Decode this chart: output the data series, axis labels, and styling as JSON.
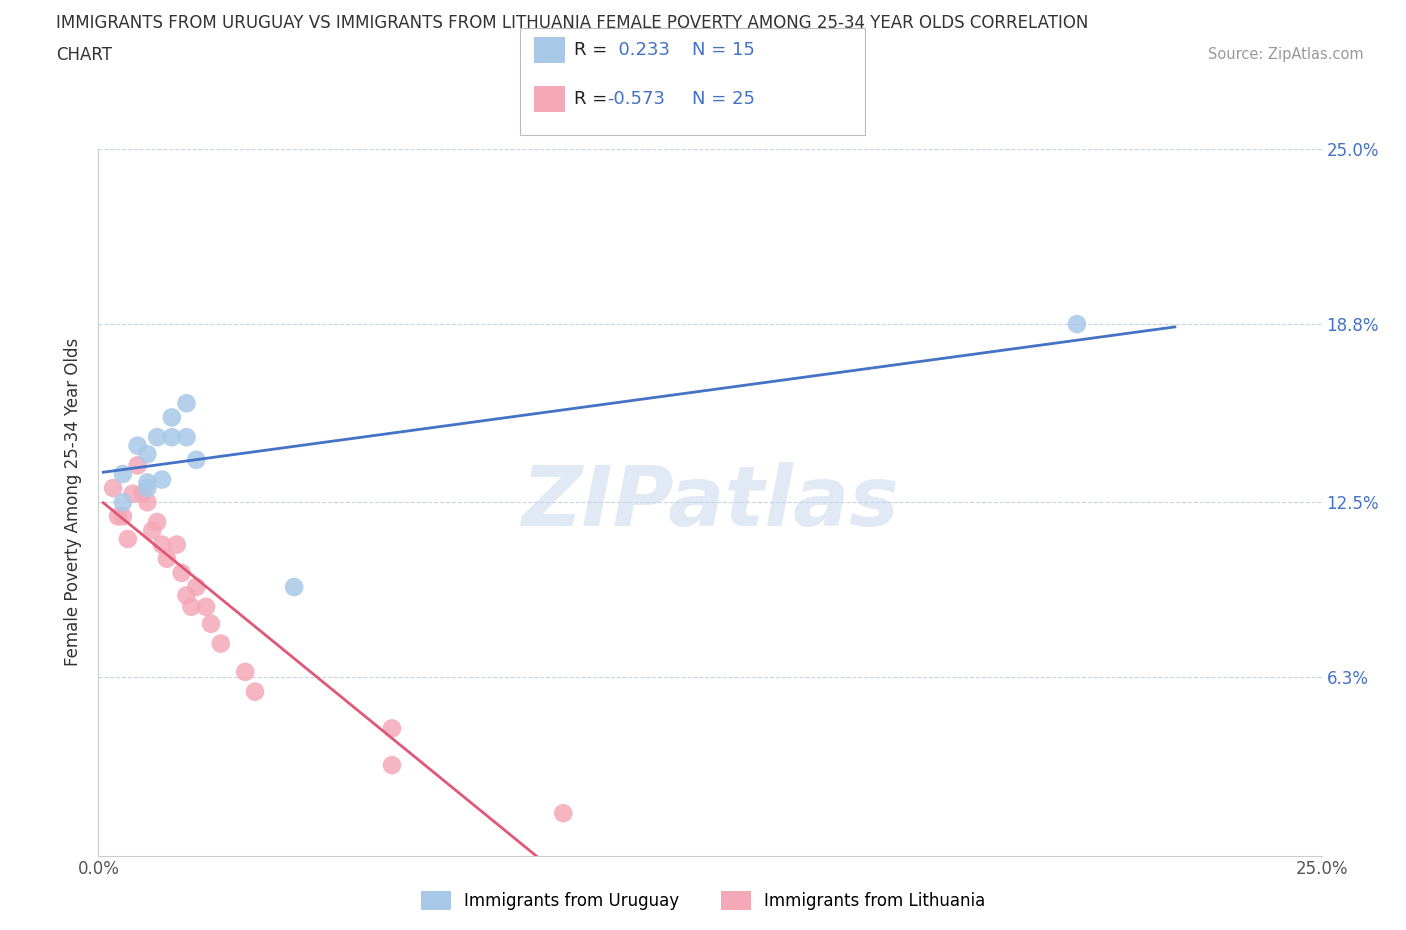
{
  "title_line1": "IMMIGRANTS FROM URUGUAY VS IMMIGRANTS FROM LITHUANIA FEMALE POVERTY AMONG 25-34 YEAR OLDS CORRELATION",
  "title_line2": "CHART",
  "source": "Source: ZipAtlas.com",
  "ylabel": "Female Poverty Among 25-34 Year Olds",
  "xlim": [
    0.0,
    0.25
  ],
  "ylim": [
    0.0,
    0.25
  ],
  "watermark": "ZIPatlas",
  "uruguay_color": "#a8c8e8",
  "lithuania_color": "#f4a8b8",
  "uruguay_line_color": "#4472c4",
  "lithuania_line_color": "#e05878",
  "uruguay_R": 0.233,
  "uruguay_N": 15,
  "lithuania_R": -0.573,
  "lithuania_N": 25,
  "uruguay_scatter_x": [
    0.005,
    0.005,
    0.008,
    0.01,
    0.01,
    0.012,
    0.013,
    0.015,
    0.015,
    0.018,
    0.018,
    0.02,
    0.04,
    0.2,
    0.01
  ],
  "uruguay_scatter_y": [
    0.135,
    0.125,
    0.145,
    0.142,
    0.132,
    0.148,
    0.133,
    0.155,
    0.148,
    0.16,
    0.148,
    0.14,
    0.095,
    0.188,
    0.13
  ],
  "lithuania_scatter_x": [
    0.003,
    0.004,
    0.005,
    0.006,
    0.007,
    0.008,
    0.009,
    0.01,
    0.011,
    0.012,
    0.013,
    0.014,
    0.016,
    0.017,
    0.018,
    0.019,
    0.02,
    0.022,
    0.023,
    0.025,
    0.03,
    0.032,
    0.06,
    0.06,
    0.095
  ],
  "lithuania_scatter_y": [
    0.13,
    0.12,
    0.12,
    0.112,
    0.128,
    0.138,
    0.128,
    0.125,
    0.115,
    0.118,
    0.11,
    0.105,
    0.11,
    0.1,
    0.092,
    0.088,
    0.095,
    0.088,
    0.082,
    0.075,
    0.065,
    0.058,
    0.045,
    0.032,
    0.015
  ],
  "right_ytick_positions": [
    0.063,
    0.125,
    0.188,
    0.25
  ],
  "right_ytick_labels": [
    "6.3%",
    "12.5%",
    "18.8%",
    "25.0%"
  ],
  "background_color": "#ffffff",
  "grid_color": "#c8d4e4"
}
